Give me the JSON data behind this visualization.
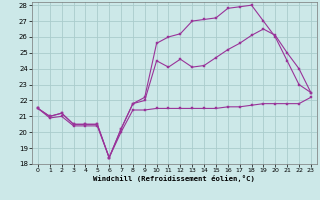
{
  "xlabel": "Windchill (Refroidissement éolien,°C)",
  "background_color": "#cce8e8",
  "grid_color": "#aacccc",
  "line_color": "#993399",
  "xlim": [
    -0.5,
    23.5
  ],
  "ylim": [
    18,
    28.2
  ],
  "yticks": [
    18,
    19,
    20,
    21,
    22,
    23,
    24,
    25,
    26,
    27,
    28
  ],
  "xticks": [
    0,
    1,
    2,
    3,
    4,
    5,
    6,
    7,
    8,
    9,
    10,
    11,
    12,
    13,
    14,
    15,
    16,
    17,
    18,
    19,
    20,
    21,
    22,
    23
  ],
  "line1_x": [
    0,
    1,
    2,
    3,
    4,
    5,
    6,
    7,
    8,
    9,
    10,
    11,
    12,
    13,
    14,
    15,
    16,
    17,
    18,
    19,
    20,
    21,
    22,
    23
  ],
  "line1_y": [
    21.5,
    20.9,
    21.0,
    20.4,
    20.4,
    20.4,
    18.4,
    20.0,
    21.4,
    21.4,
    21.5,
    21.5,
    21.5,
    21.5,
    21.5,
    21.5,
    21.6,
    21.6,
    21.7,
    21.8,
    21.8,
    21.8,
    21.8,
    22.2
  ],
  "line2_x": [
    0,
    1,
    2,
    3,
    4,
    5,
    6,
    7,
    8,
    9,
    10,
    11,
    12,
    13,
    14,
    15,
    16,
    17,
    18,
    19,
    20,
    21,
    22,
    23
  ],
  "line2_y": [
    21.5,
    21.0,
    21.2,
    20.5,
    20.5,
    20.5,
    18.4,
    20.2,
    21.8,
    22.0,
    24.5,
    24.1,
    24.6,
    24.1,
    24.2,
    24.7,
    25.2,
    25.6,
    26.1,
    26.5,
    26.1,
    25.0,
    24.0,
    22.5
  ],
  "line3_x": [
    0,
    1,
    2,
    3,
    4,
    5,
    6,
    7,
    8,
    9,
    10,
    11,
    12,
    13,
    14,
    15,
    16,
    17,
    18,
    19,
    20,
    21,
    22,
    23
  ],
  "line3_y": [
    21.5,
    21.0,
    21.2,
    20.5,
    20.5,
    20.5,
    18.4,
    20.2,
    21.8,
    22.2,
    25.6,
    26.0,
    26.2,
    27.0,
    27.1,
    27.2,
    27.8,
    27.9,
    28.0,
    27.0,
    26.0,
    24.5,
    23.0,
    22.5
  ]
}
